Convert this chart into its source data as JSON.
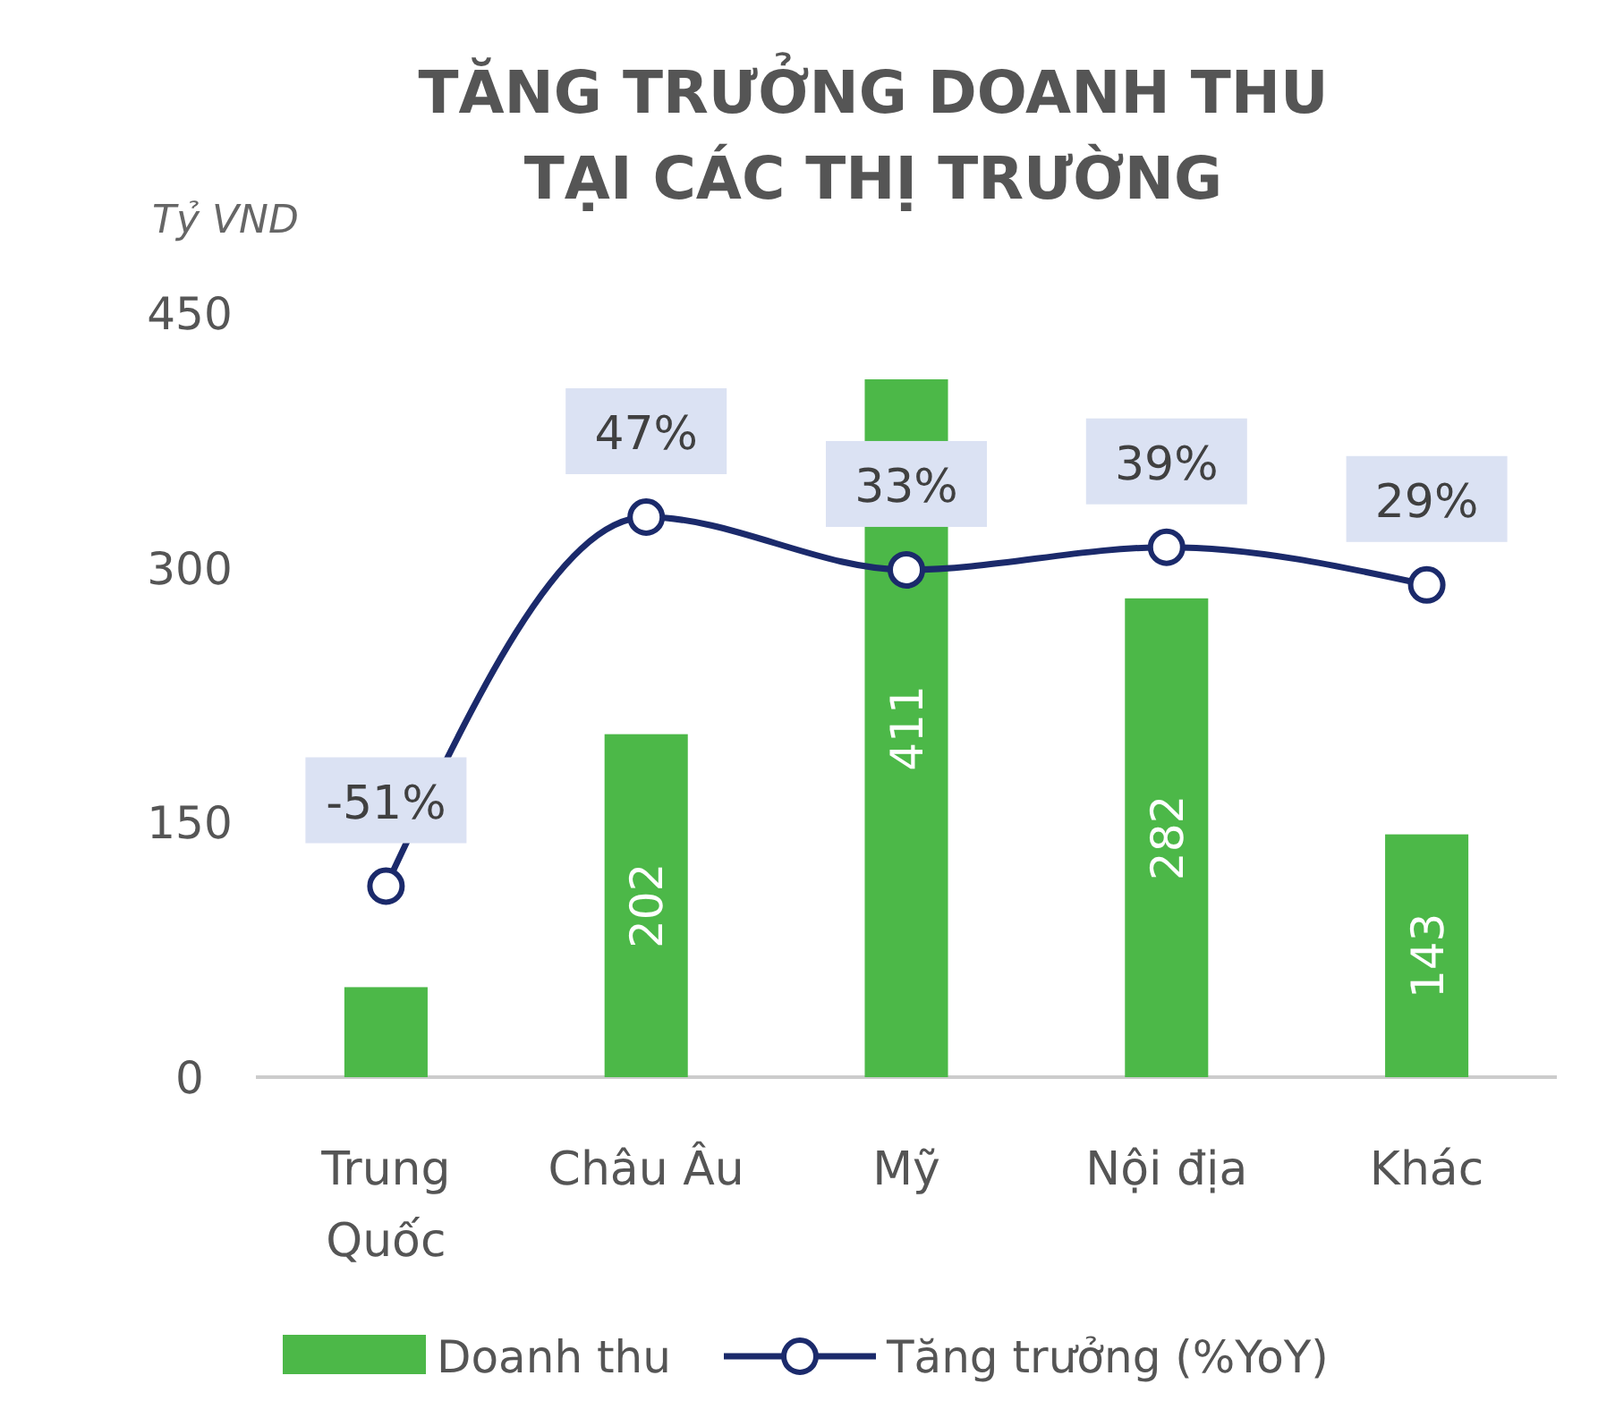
{
  "chart_data": {
    "type": "bar",
    "title": "TĂNG TRƯỞNG DOANH THU\nTẠI CÁC THỊ TRƯỜNG",
    "ylabel": "Tỷ VND",
    "categories": [
      "Trung\nQuốc",
      "Châu Âu",
      "Mỹ",
      "Nội địa",
      "Khác"
    ],
    "ylim": [
      0,
      450
    ],
    "yticks": [
      0,
      150,
      300,
      450
    ],
    "grid": false,
    "legend": "bottom",
    "series": [
      {
        "name": "Doanh thu",
        "color": "#4cb848",
        "values": [
          53,
          202,
          411,
          282,
          143
        ],
        "value_labels": [
          null,
          "202",
          "411",
          "282",
          "143"
        ]
      },
      {
        "name": "Tăng trưởng (%YoY)",
        "type": "line",
        "axis": "y2",
        "color": "#1b2a6b",
        "marker": "circle",
        "values": [
          -51,
          47,
          33,
          39,
          29
        ],
        "value_labels": [
          "-51%",
          "47%",
          "33%",
          "39%",
          "29%"
        ]
      }
    ]
  }
}
